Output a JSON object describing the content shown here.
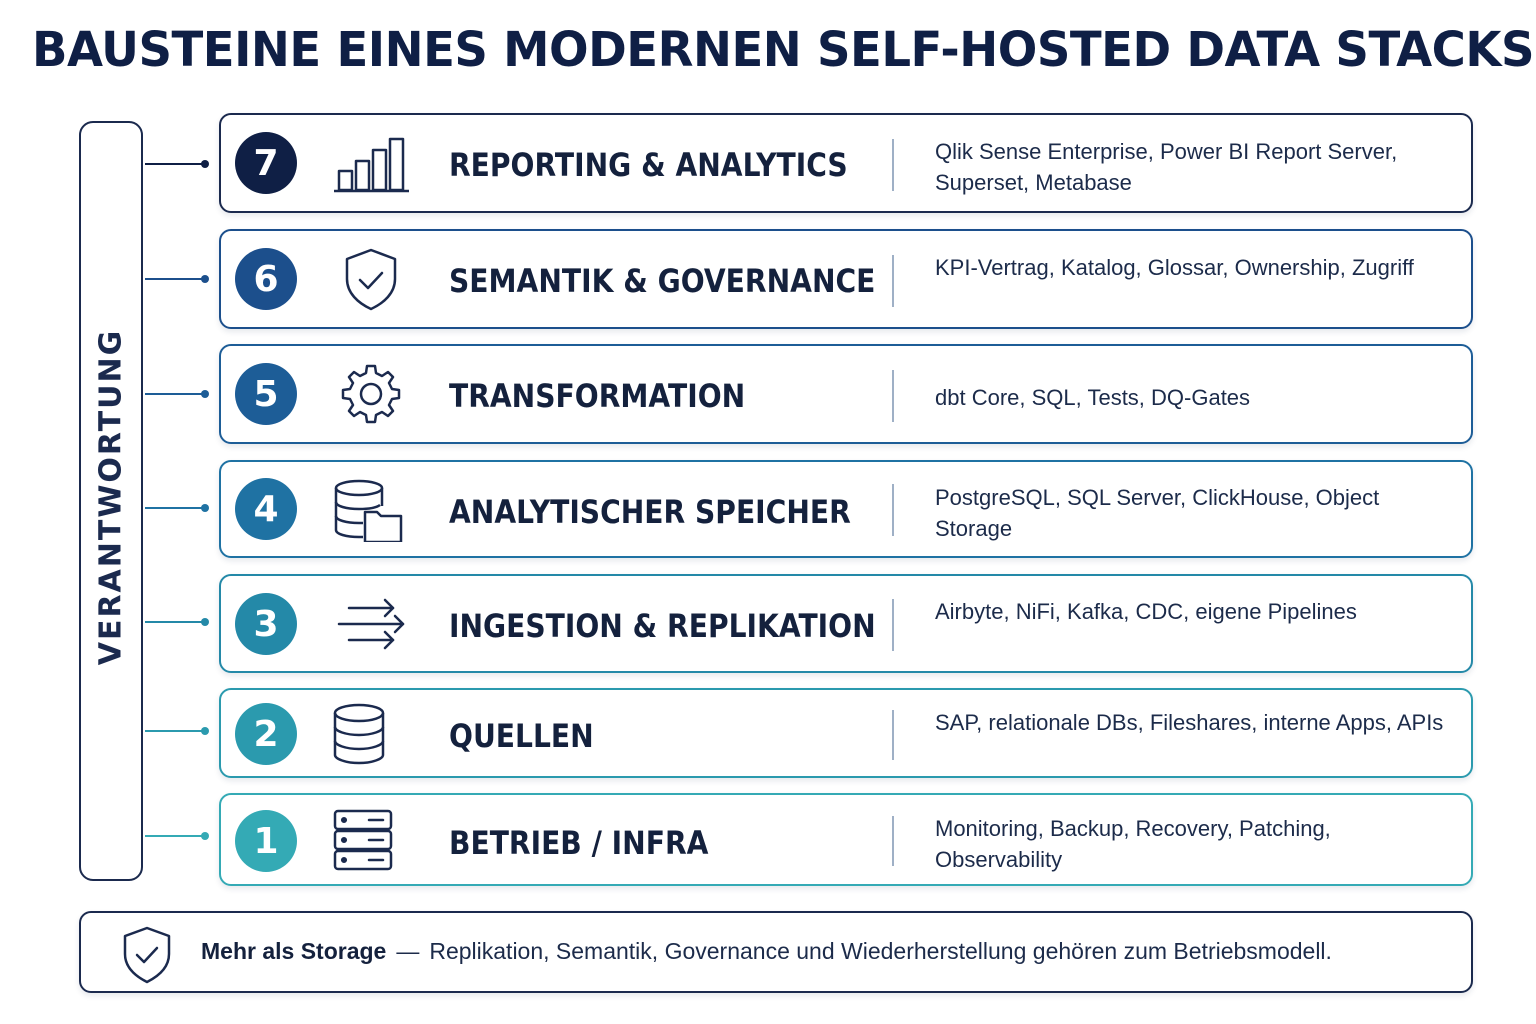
{
  "title": "BAUSTEINE EINES MODERNEN SELF-HOSTED DATA STACKS",
  "responsibility_label": "VERANTWORTUNG",
  "layers": [
    {
      "number": "7",
      "name": "REPORTING & ANALYTICS",
      "tools": "Qlik Sense Enterprise, Power BI Report Server, Superset, Metabase",
      "icon": "bar-chart-icon",
      "color": "#0f1f45"
    },
    {
      "number": "6",
      "name": "SEMANTIK & GOVERNANCE",
      "tools": "KPI-Vertrag, Katalog, Glossar, Ownership, Zugriff",
      "icon": "shield-check-icon",
      "color": "#1c4f8c"
    },
    {
      "number": "5",
      "name": "TRANSFORMATION",
      "tools": "dbt Core, SQL, Tests, DQ-Gates",
      "icon": "gear-icon",
      "color": "#1d5d97"
    },
    {
      "number": "4",
      "name": "ANALYTISCHER SPEICHER",
      "tools": "PostgreSQL, SQL Server, ClickHouse, Object Storage",
      "icon": "database-folder-icon",
      "color": "#1f72a3"
    },
    {
      "number": "3",
      "name": "INGESTION & REPLIKATION",
      "tools": "Airbyte, NiFi, Kafka, CDC, eigene Pipelines",
      "icon": "arrows-icon",
      "color": "#2489a8"
    },
    {
      "number": "2",
      "name": "QUELLEN",
      "tools": "SAP, relationale DBs, Fileshares, interne Apps, APIs",
      "icon": "database-icon",
      "color": "#2b9aae"
    },
    {
      "number": "1",
      "name": "BETRIEB / INFRA",
      "tools": "Monitoring, Backup, Recovery, Patching, Observability",
      "icon": "server-icon",
      "color": "#34aab5"
    }
  ],
  "footer": {
    "icon": "shield-check-icon",
    "strong": "Mehr als Storage",
    "dash": "—",
    "text": "Replikation, Semantik, Governance und Wiederherstellung gehören zum Betriebsmodell."
  }
}
